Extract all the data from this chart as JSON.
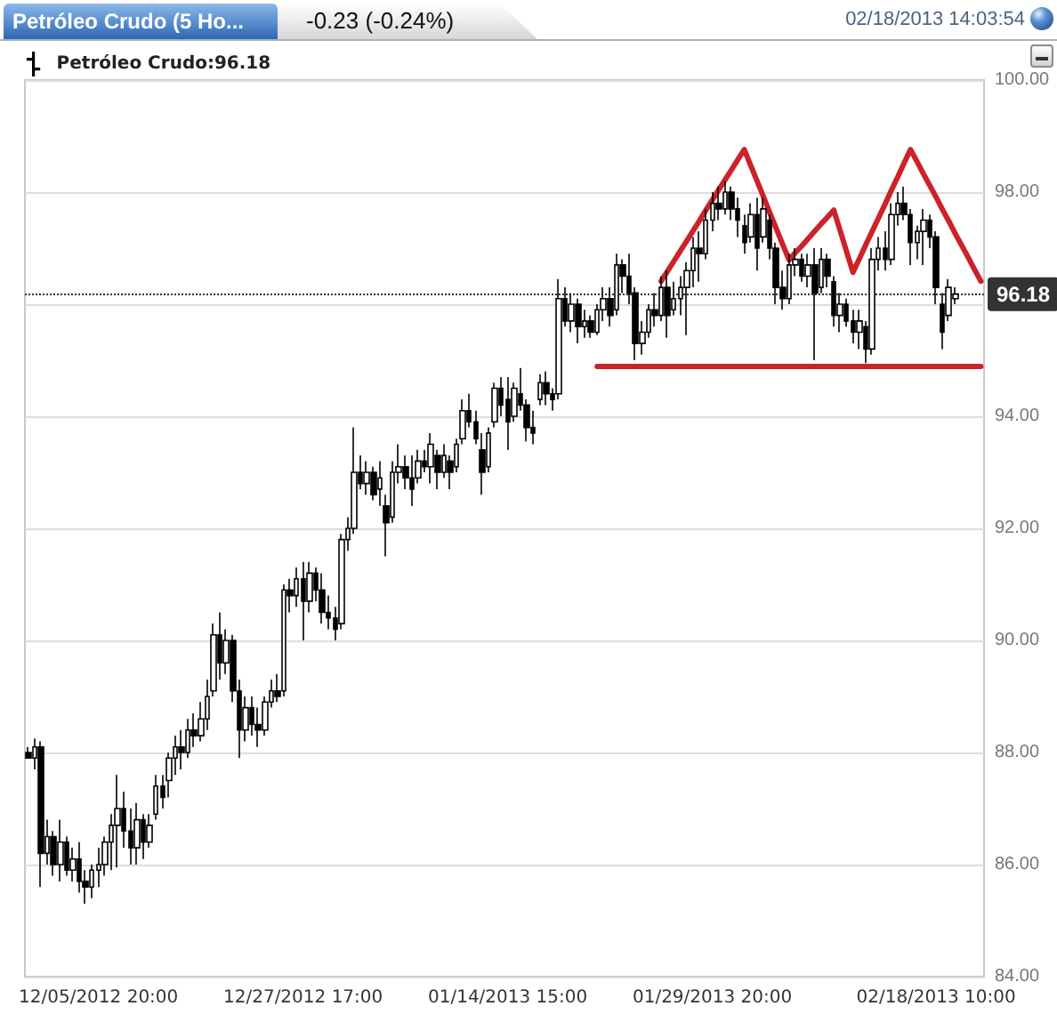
{
  "chart_data": {
    "type": "candlestick",
    "title": "Petróleo Crudo (5 Ho...",
    "subtitle": "-0.23 (-0.24%)",
    "annotations": [
      "02/18/2013 14:03:54"
    ],
    "categories": [
      null,
      null,
      null,
      null,
      null,
      null,
      null,
      null,
      null,
      null,
      null,
      "12/05/2012 20:00",
      null,
      null,
      null,
      null,
      null,
      null,
      null,
      null,
      null,
      null,
      null,
      null,
      null,
      null,
      null,
      null,
      null,
      null,
      null,
      null,
      null,
      null,
      null,
      null,
      null,
      null,
      null,
      null,
      null,
      null,
      null,
      "12/27/2012 17:00",
      null,
      null,
      null,
      null,
      null,
      null,
      null,
      null,
      null,
      null,
      null,
      null,
      null,
      null,
      null,
      null,
      null,
      null,
      null,
      null,
      null,
      null,
      null,
      null,
      null,
      null,
      null,
      null,
      null,
      null,
      null,
      "01/14/2013 15:00",
      null,
      null,
      null,
      null,
      null,
      null,
      null,
      null,
      null,
      null,
      null,
      null,
      null,
      null,
      null,
      null,
      null,
      null,
      null,
      null,
      null,
      null,
      null,
      null,
      null,
      null,
      null,
      null,
      null,
      null,
      null,
      "01/29/2013 20:00",
      null,
      null,
      null,
      null,
      null,
      null,
      null,
      null,
      null,
      null,
      null,
      null,
      null,
      null,
      null,
      null,
      null,
      null,
      null,
      null,
      null,
      null,
      null,
      null,
      null,
      null,
      null,
      null,
      null,
      null,
      null,
      null,
      null,
      null,
      "02/18/2013 10:00",
      null,
      null,
      null,
      null,
      null,
      null,
      null
    ],
    "series": [
      {
        "name": "Petróleo Crudo:96.18",
        "color": "#000000",
        "ohlc": [
          [
            88.0,
            88.1,
            87.9,
            87.9
          ],
          [
            87.9,
            88.25,
            87.7,
            88.1
          ],
          [
            88.1,
            88.2,
            85.6,
            86.2
          ],
          [
            86.2,
            86.8,
            86.0,
            86.5
          ],
          [
            86.5,
            86.6,
            85.8,
            86.0
          ],
          [
            86.0,
            86.8,
            85.7,
            86.4
          ],
          [
            86.4,
            86.5,
            85.8,
            85.9
          ],
          [
            85.9,
            86.3,
            85.7,
            86.1
          ],
          [
            86.1,
            86.4,
            85.5,
            85.7
          ],
          [
            85.7,
            85.9,
            85.3,
            85.6
          ],
          [
            85.6,
            86.0,
            85.4,
            85.9
          ],
          [
            85.9,
            86.3,
            85.6,
            86.0
          ],
          [
            86.0,
            86.5,
            85.8,
            86.4
          ],
          [
            86.4,
            86.9,
            85.9,
            86.7
          ],
          [
            86.7,
            87.6,
            85.95,
            87.0
          ],
          [
            87.0,
            87.3,
            86.3,
            86.6
          ],
          [
            86.6,
            87.0,
            86.0,
            86.3
          ],
          [
            86.3,
            87.1,
            86.0,
            86.8
          ],
          [
            86.8,
            86.9,
            86.1,
            86.4
          ],
          [
            86.4,
            86.9,
            86.3,
            86.7
          ],
          [
            86.9,
            87.6,
            86.8,
            87.4
          ],
          [
            87.4,
            87.6,
            87.0,
            87.2
          ],
          [
            87.5,
            88.0,
            87.2,
            87.9
          ],
          [
            87.9,
            88.3,
            87.6,
            88.1
          ],
          [
            88.1,
            88.4,
            87.7,
            88.0
          ],
          [
            88.0,
            88.6,
            87.9,
            88.4
          ],
          [
            88.4,
            88.7,
            88.1,
            88.3
          ],
          [
            88.3,
            88.9,
            88.2,
            88.6
          ],
          [
            88.6,
            89.3,
            88.4,
            89.0
          ],
          [
            89.1,
            90.3,
            89.0,
            90.1
          ],
          [
            90.1,
            90.5,
            89.3,
            89.6
          ],
          [
            89.6,
            90.2,
            89.4,
            90.0
          ],
          [
            90.0,
            90.1,
            88.9,
            89.1
          ],
          [
            89.1,
            89.3,
            87.9,
            88.4
          ],
          [
            88.4,
            89.0,
            88.2,
            88.8
          ],
          [
            88.8,
            89.0,
            88.3,
            88.5
          ],
          [
            88.5,
            88.8,
            88.1,
            88.4
          ],
          [
            88.4,
            89.0,
            88.3,
            88.9
          ],
          [
            88.9,
            89.3,
            88.8,
            89.1
          ],
          [
            89.1,
            89.4,
            88.9,
            89.0
          ],
          [
            89.1,
            91.0,
            89.0,
            90.9
          ],
          [
            90.9,
            91.1,
            90.5,
            90.8
          ],
          [
            90.8,
            91.3,
            90.6,
            91.1
          ],
          [
            91.1,
            91.4,
            90.0,
            90.7
          ],
          [
            90.7,
            91.4,
            90.5,
            91.2
          ],
          [
            91.2,
            91.3,
            90.7,
            90.9
          ],
          [
            90.9,
            91.2,
            90.3,
            90.5
          ],
          [
            90.5,
            90.8,
            90.2,
            90.4
          ],
          [
            90.4,
            90.6,
            90.0,
            90.2
          ],
          [
            90.3,
            91.9,
            90.2,
            91.8
          ],
          [
            91.8,
            92.2,
            91.6,
            92.0
          ],
          [
            92.0,
            93.8,
            91.9,
            93.0
          ],
          [
            93.0,
            93.3,
            92.7,
            92.8
          ],
          [
            92.8,
            93.2,
            92.6,
            93.0
          ],
          [
            93.0,
            93.1,
            92.5,
            92.6
          ],
          [
            92.7,
            93.2,
            92.4,
            92.9
          ],
          [
            92.4,
            92.6,
            91.5,
            92.1
          ],
          [
            92.2,
            93.2,
            92.1,
            93.0
          ],
          [
            93.0,
            93.5,
            92.8,
            93.1
          ],
          [
            93.1,
            93.3,
            92.7,
            92.9
          ],
          [
            92.9,
            93.3,
            92.4,
            92.7
          ],
          [
            92.9,
            93.4,
            92.8,
            93.2
          ],
          [
            93.2,
            93.4,
            93.0,
            93.1
          ],
          [
            93.1,
            93.7,
            92.8,
            93.5
          ],
          [
            93.3,
            93.4,
            92.7,
            93.0
          ],
          [
            93.0,
            93.5,
            92.9,
            93.3
          ],
          [
            93.2,
            93.3,
            92.7,
            93.0
          ],
          [
            93.1,
            93.6,
            93.0,
            93.5
          ],
          [
            93.6,
            94.3,
            93.5,
            94.1
          ],
          [
            94.1,
            94.4,
            93.8,
            93.9
          ],
          [
            93.9,
            94.1,
            93.5,
            93.6
          ],
          [
            93.4,
            93.7,
            92.6,
            93.0
          ],
          [
            93.1,
            93.8,
            93.0,
            93.7
          ],
          [
            93.9,
            94.6,
            93.8,
            94.5
          ],
          [
            94.5,
            94.7,
            94.0,
            94.2
          ],
          [
            94.3,
            94.7,
            93.4,
            93.9
          ],
          [
            94.0,
            94.6,
            93.9,
            94.5
          ],
          [
            94.4,
            94.86,
            94.1,
            94.2
          ],
          [
            94.2,
            94.3,
            93.55,
            93.8
          ],
          [
            93.8,
            94.1,
            93.5,
            93.7
          ],
          [
            94.3,
            94.75,
            94.2,
            94.6
          ],
          [
            94.6,
            94.8,
            94.2,
            94.4
          ],
          [
            94.4,
            94.5,
            94.1,
            94.3
          ],
          [
            94.4,
            96.45,
            94.3,
            96.1
          ],
          [
            96.1,
            96.3,
            95.6,
            95.7
          ],
          [
            95.7,
            96.2,
            95.5,
            96.0
          ],
          [
            96.0,
            96.1,
            95.3,
            95.6
          ],
          [
            95.6,
            95.9,
            95.4,
            95.7
          ],
          [
            95.7,
            95.8,
            95.4,
            95.5
          ],
          [
            95.5,
            96.0,
            95.45,
            95.9
          ],
          [
            95.9,
            96.3,
            95.7,
            96.1
          ],
          [
            96.1,
            96.3,
            95.6,
            95.8
          ],
          [
            95.9,
            96.9,
            95.8,
            96.7
          ],
          [
            96.7,
            96.8,
            96.2,
            96.5
          ],
          [
            96.5,
            96.9,
            96.0,
            96.2
          ],
          [
            96.2,
            96.3,
            95.0,
            95.3
          ],
          [
            95.3,
            95.7,
            95.1,
            95.5
          ],
          [
            95.5,
            96.0,
            95.4,
            95.9
          ],
          [
            95.9,
            96.2,
            95.6,
            95.8
          ],
          [
            95.8,
            96.5,
            95.7,
            96.3
          ],
          [
            96.3,
            96.6,
            95.4,
            95.8
          ],
          [
            95.9,
            96.4,
            95.8,
            96.1
          ],
          [
            96.1,
            96.5,
            95.8,
            96.3
          ],
          [
            96.3,
            96.75,
            95.45,
            96.6
          ],
          [
            96.6,
            97.2,
            96.3,
            97.0
          ],
          [
            97.0,
            97.3,
            96.4,
            96.9
          ],
          [
            96.9,
            97.7,
            96.8,
            97.5
          ],
          [
            97.5,
            98.0,
            97.3,
            97.8
          ],
          [
            97.8,
            98.1,
            97.5,
            97.7
          ],
          [
            97.7,
            98.2,
            97.6,
            98.0
          ],
          [
            98.0,
            98.1,
            97.5,
            97.7
          ],
          [
            97.7,
            97.9,
            97.2,
            97.5
          ],
          [
            97.4,
            97.6,
            96.9,
            97.1
          ],
          [
            97.2,
            97.8,
            97.1,
            97.6
          ],
          [
            97.6,
            97.9,
            96.6,
            97.0
          ],
          [
            97.2,
            97.9,
            97.1,
            97.7
          ],
          [
            97.5,
            97.6,
            96.8,
            97.0
          ],
          [
            97.0,
            97.1,
            96.0,
            96.3
          ],
          [
            96.3,
            96.6,
            95.9,
            96.1
          ],
          [
            96.1,
            96.9,
            96.0,
            96.7
          ],
          [
            96.7,
            97.0,
            96.5,
            96.8
          ],
          [
            96.8,
            96.9,
            96.4,
            96.5
          ],
          [
            96.5,
            96.9,
            96.3,
            96.7
          ],
          [
            96.7,
            97.0,
            95.0,
            96.2
          ],
          [
            96.3,
            97.0,
            96.2,
            96.8
          ],
          [
            96.8,
            96.9,
            96.3,
            96.5
          ],
          [
            96.4,
            96.5,
            95.6,
            95.8
          ],
          [
            95.8,
            96.2,
            95.5,
            96.0
          ],
          [
            96.0,
            96.1,
            95.6,
            95.7
          ],
          [
            95.7,
            95.9,
            95.3,
            95.5
          ],
          [
            95.5,
            95.9,
            95.2,
            95.7
          ],
          [
            95.6,
            95.7,
            94.95,
            95.2
          ],
          [
            95.2,
            97.0,
            95.1,
            96.8
          ],
          [
            96.8,
            97.2,
            96.6,
            97.0
          ],
          [
            97.0,
            97.3,
            96.6,
            96.8
          ],
          [
            96.8,
            97.8,
            96.7,
            97.6
          ],
          [
            97.6,
            98.0,
            97.4,
            97.8
          ],
          [
            97.8,
            98.1,
            97.5,
            97.6
          ],
          [
            97.6,
            97.7,
            96.7,
            97.1
          ],
          [
            97.1,
            97.4,
            96.8,
            97.3
          ],
          [
            97.3,
            97.7,
            96.7,
            97.5
          ],
          [
            97.5,
            97.6,
            97.0,
            97.2
          ],
          [
            97.2,
            97.3,
            96.0,
            96.3
          ],
          [
            96.0,
            96.2,
            95.2,
            95.5
          ],
          [
            95.8,
            96.45,
            95.7,
            96.3
          ],
          [
            96.1,
            96.3,
            96.0,
            96.18
          ],
          null,
          null,
          null,
          null
        ]
      },
      {
        "type": "line",
        "color": "#cc2229",
        "values": [
          null,
          null,
          null,
          null,
          null,
          null,
          null,
          null,
          null,
          null,
          null,
          null,
          null,
          null,
          null,
          null,
          null,
          null,
          null,
          null,
          null,
          null,
          null,
          null,
          null,
          null,
          null,
          null,
          null,
          null,
          null,
          null,
          null,
          null,
          null,
          null,
          null,
          null,
          null,
          null,
          null,
          null,
          null,
          null,
          null,
          null,
          null,
          null,
          null,
          null,
          null,
          null,
          null,
          null,
          null,
          null,
          null,
          null,
          null,
          null,
          null,
          null,
          null,
          null,
          null,
          null,
          null,
          null,
          null,
          null,
          null,
          null,
          null,
          null,
          null,
          null,
          null,
          null,
          null,
          null,
          null,
          null,
          null,
          null,
          null,
          null,
          null,
          null,
          null,
          null,
          null,
          null,
          null,
          null,
          null,
          null,
          null,
          null,
          null,
          96.41,
          96.59,
          96.77,
          96.95,
          97.13,
          97.31,
          97.49,
          97.68,
          97.86,
          98.04,
          98.22,
          98.4,
          98.58,
          98.76,
          98.48,
          98.2,
          97.92,
          97.63,
          97.35,
          97.07,
          96.79,
          96.92,
          97.04,
          97.17,
          97.3,
          97.43,
          97.55,
          97.68,
          97.31,
          96.94,
          96.57,
          96.81,
          97.06,
          97.3,
          97.54,
          97.78,
          98.03,
          98.27,
          98.52,
          98.76,
          98.55,
          98.33,
          98.12,
          97.91,
          97.69,
          97.48,
          97.26,
          97.05,
          96.84,
          96.62,
          96.41
        ]
      },
      {
        "type": "line",
        "color": "#cc2229",
        "values": [
          null,
          null,
          null,
          null,
          null,
          null,
          null,
          null,
          null,
          null,
          null,
          null,
          null,
          null,
          null,
          null,
          null,
          null,
          null,
          null,
          null,
          null,
          null,
          null,
          null,
          null,
          null,
          null,
          null,
          null,
          null,
          null,
          null,
          null,
          null,
          null,
          null,
          null,
          null,
          null,
          null,
          null,
          null,
          null,
          null,
          null,
          null,
          null,
          null,
          null,
          null,
          null,
          null,
          null,
          null,
          null,
          null,
          null,
          null,
          null,
          null,
          null,
          null,
          null,
          null,
          null,
          null,
          null,
          null,
          null,
          null,
          null,
          null,
          null,
          null,
          null,
          null,
          null,
          null,
          null,
          null,
          null,
          null,
          null,
          null,
          null,
          null,
          null,
          null,
          94.89,
          94.89,
          94.89,
          94.89,
          94.89,
          94.89,
          94.89,
          94.89,
          94.89,
          94.89,
          94.89,
          94.89,
          94.89,
          94.89,
          94.89,
          94.89,
          94.89,
          94.89,
          94.89,
          94.89,
          94.89,
          94.89,
          94.89,
          94.89,
          94.89,
          94.89,
          94.89,
          94.89,
          94.89,
          94.89,
          94.89,
          94.89,
          94.89,
          94.89,
          94.89,
          94.89,
          94.89,
          94.89,
          94.89,
          94.89,
          94.89,
          94.89,
          94.89,
          94.89,
          94.89,
          94.89,
          94.89,
          94.89,
          94.89,
          94.89,
          94.89,
          94.89,
          94.89,
          94.89,
          94.89,
          94.89,
          94.89,
          94.89,
          94.89,
          94.89,
          94.89
        ]
      }
    ],
    "ylim": [
      84,
      100
    ],
    "yticks": [
      {
        "value": 84,
        "label": "84.00"
      },
      {
        "value": 86,
        "label": "86.00"
      },
      {
        "value": 88,
        "label": "88.00"
      },
      {
        "value": 90,
        "label": "90.00"
      },
      {
        "value": 92,
        "label": "92.00"
      },
      {
        "value": 94,
        "label": "94.00"
      },
      {
        "value": 96,
        "label": null
      },
      {
        "value": 98,
        "label": "98.00"
      },
      {
        "value": 100,
        "label": "100.00"
      }
    ],
    "ref_lines": [
      {
        "axis": "y",
        "value": 96.18,
        "label": "96.18",
        "color": "#333333",
        "line_style": "dotted"
      }
    ],
    "grid": "y",
    "legend": "top left",
    "marker": "none"
  }
}
